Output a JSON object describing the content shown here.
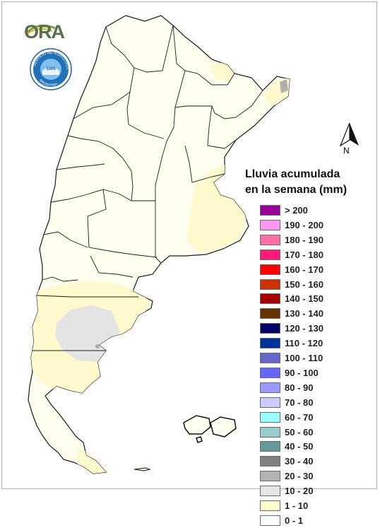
{
  "logos": {
    "ora_text": "ORA",
    "smn_top_text": "SERVICIO METEOROLOGICO NACIONAL",
    "smn_center_text": "SMN",
    "smn_bottom_text": "ARGENTINA"
  },
  "north_arrow": {
    "label": "N"
  },
  "legend": {
    "title_line1": "Lluvia acumulada",
    "title_line2": "en la semana (mm)",
    "items": [
      {
        "label": "> 200",
        "color": "#990099"
      },
      {
        "label": "190 - 200",
        "color": "#ff99ee"
      },
      {
        "label": "180 - 190",
        "color": "#ff6fa8"
      },
      {
        "label": "170 - 180",
        "color": "#ff1a75"
      },
      {
        "label": "160 - 170",
        "color": "#ff0000"
      },
      {
        "label": "150 - 160",
        "color": "#cc3300"
      },
      {
        "label": "140 - 150",
        "color": "#a30000"
      },
      {
        "label": "130 - 140",
        "color": "#663300"
      },
      {
        "label": "120 - 130",
        "color": "#000066"
      },
      {
        "label": "110 - 120",
        "color": "#003399"
      },
      {
        "label": "100 - 110",
        "color": "#6666cc"
      },
      {
        "label": "90 - 100",
        "color": "#6666ff"
      },
      {
        "label": "80 - 90",
        "color": "#9999ff"
      },
      {
        "label": "70 - 80",
        "color": "#ccccff"
      },
      {
        "label": "60 - 70",
        "color": "#99ffff"
      },
      {
        "label": "50 - 60",
        "color": "#99cccc"
      },
      {
        "label": "40 - 50",
        "color": "#669999"
      },
      {
        "label": "30 - 40",
        "color": "#808080"
      },
      {
        "label": "20 - 30",
        "color": "#b3b3b3"
      },
      {
        "label": "10 - 20",
        "color": "#e6e6e6"
      },
      {
        "label": "1 - 10",
        "color": "#ffffcc"
      },
      {
        "label": "0 - 1",
        "color": "#ffffff"
      }
    ]
  },
  "map": {
    "country_fill": "#fffff0",
    "border_color": "#1a1a1a",
    "rain_1_10_color": "#fffacd",
    "rain_10_20_color": "#e4e4e4",
    "rain_20_30_color": "#b0b0b0"
  }
}
